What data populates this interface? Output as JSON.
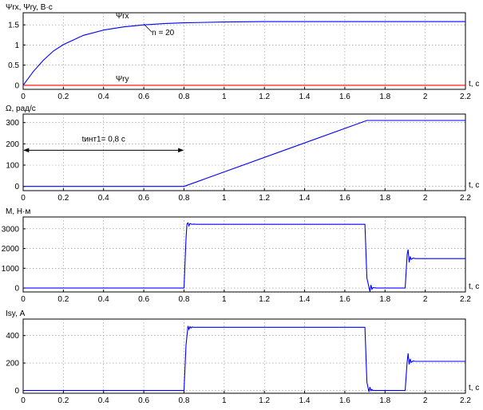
{
  "chart_data": [
    {
      "type": "line",
      "ylabel": "Ψrx, Ψry, В·с",
      "xlabel": "t, с",
      "xlim": [
        0,
        2.2
      ],
      "ylim": [
        -0.1,
        1.8
      ],
      "xticks": [
        "0",
        "0.2",
        "0.4",
        "0.6",
        "0.8",
        "1",
        "1.2",
        "1.4",
        "1.6",
        "1.8",
        "2",
        "2.2"
      ],
      "yticks": [
        "0",
        "0.5",
        "1",
        "1.5"
      ],
      "grid": true,
      "series": [
        {
          "name": "Ψrx",
          "color": "#0000ff",
          "x": [
            0,
            0.05,
            0.1,
            0.15,
            0.2,
            0.3,
            0.4,
            0.5,
            0.6,
            0.7,
            0.8,
            1.0,
            1.2,
            1.6,
            2.2
          ],
          "y": [
            0,
            0.34,
            0.62,
            0.85,
            1.01,
            1.24,
            1.37,
            1.45,
            1.5,
            1.53,
            1.55,
            1.57,
            1.58,
            1.58,
            1.58
          ]
        },
        {
          "name": "Ψry",
          "color": "#ff0000",
          "x": [
            0,
            2.2
          ],
          "y": [
            0,
            0
          ]
        }
      ],
      "annotations": [
        {
          "text": "n = 20",
          "x": 0.64,
          "y": 1.25
        }
      ]
    },
    {
      "type": "line",
      "ylabel": "Ω, рад/с",
      "xlabel": "t, с",
      "xlim": [
        0,
        2.2
      ],
      "ylim": [
        -20,
        340
      ],
      "xticks": [
        "0",
        "0.2",
        "0.4",
        "0.6",
        "0.8",
        "1",
        "1.2",
        "1.4",
        "1.6",
        "1.8",
        "2",
        "2.2"
      ],
      "yticks": [
        "0",
        "100",
        "200",
        "300"
      ],
      "grid": true,
      "series": [
        {
          "color": "#0000ff",
          "x": [
            0,
            0.8,
            1.71,
            2.2
          ],
          "y": [
            0,
            0,
            310,
            310
          ]
        }
      ],
      "annotations": [
        {
          "text": "tинт1= 0,8 с",
          "x": 0.4,
          "y": 210
        }
      ],
      "arrow": {
        "from": 0,
        "to": 0.8,
        "y": 170
      }
    },
    {
      "type": "line",
      "ylabel": "M, Н·м",
      "xlabel": "t, с",
      "xlim": [
        0,
        2.2
      ],
      "ylim": [
        -200,
        3600
      ],
      "xticks": [
        "0",
        "0.2",
        "0.4",
        "0.6",
        "0.8",
        "1",
        "1.2",
        "1.4",
        "1.6",
        "1.8",
        "2",
        "2.2"
      ],
      "yticks": [
        "0",
        "1000",
        "2000",
        "3000"
      ],
      "grid": true,
      "series": [
        {
          "color": "#0000ff",
          "x": [
            0,
            0.8,
            0.81,
            0.815,
            0.82,
            0.825,
            0.83,
            0.84,
            0.85,
            0.86,
            1.7,
            1.71,
            1.72,
            1.725,
            1.73,
            1.735,
            1.74,
            1.75,
            1.76,
            1.9,
            1.91,
            1.915,
            1.92,
            1.925,
            1.93,
            1.94,
            1.95,
            2.2
          ],
          "y": [
            0,
            0,
            2500,
            3250,
            3300,
            3150,
            3270,
            3230,
            3240,
            3230,
            3230,
            500,
            50,
            -180,
            150,
            -60,
            20,
            10,
            0,
            0,
            1700,
            1950,
            1300,
            1600,
            1450,
            1520,
            1490,
            1490
          ]
        }
      ]
    },
    {
      "type": "line",
      "ylabel": "Isy, А",
      "xlabel": "t, с",
      "xlim": [
        0,
        2.2
      ],
      "ylim": [
        -20,
        520
      ],
      "xticks": [
        "0",
        "0.2",
        "0.4",
        "0.6",
        "0.8",
        "1",
        "1.2",
        "1.4",
        "1.6",
        "1.8",
        "2",
        "2.2"
      ],
      "yticks": [
        "0",
        "200",
        "400"
      ],
      "grid": true,
      "series": [
        {
          "color": "#0000ff",
          "x": [
            0,
            0.8,
            0.81,
            0.82,
            0.825,
            0.83,
            0.835,
            0.84,
            0.85,
            0.86,
            1.7,
            1.71,
            1.72,
            1.725,
            1.73,
            1.735,
            1.74,
            1.75,
            1.9,
            1.91,
            1.915,
            1.92,
            1.925,
            1.93,
            1.94,
            1.95,
            2.2
          ],
          "y": [
            0,
            0,
            330,
            470,
            445,
            465,
            455,
            462,
            460,
            460,
            460,
            60,
            -10,
            25,
            0,
            8,
            0,
            0,
            0,
            210,
            270,
            190,
            230,
            205,
            215,
            212,
            212
          ]
        }
      ]
    }
  ]
}
